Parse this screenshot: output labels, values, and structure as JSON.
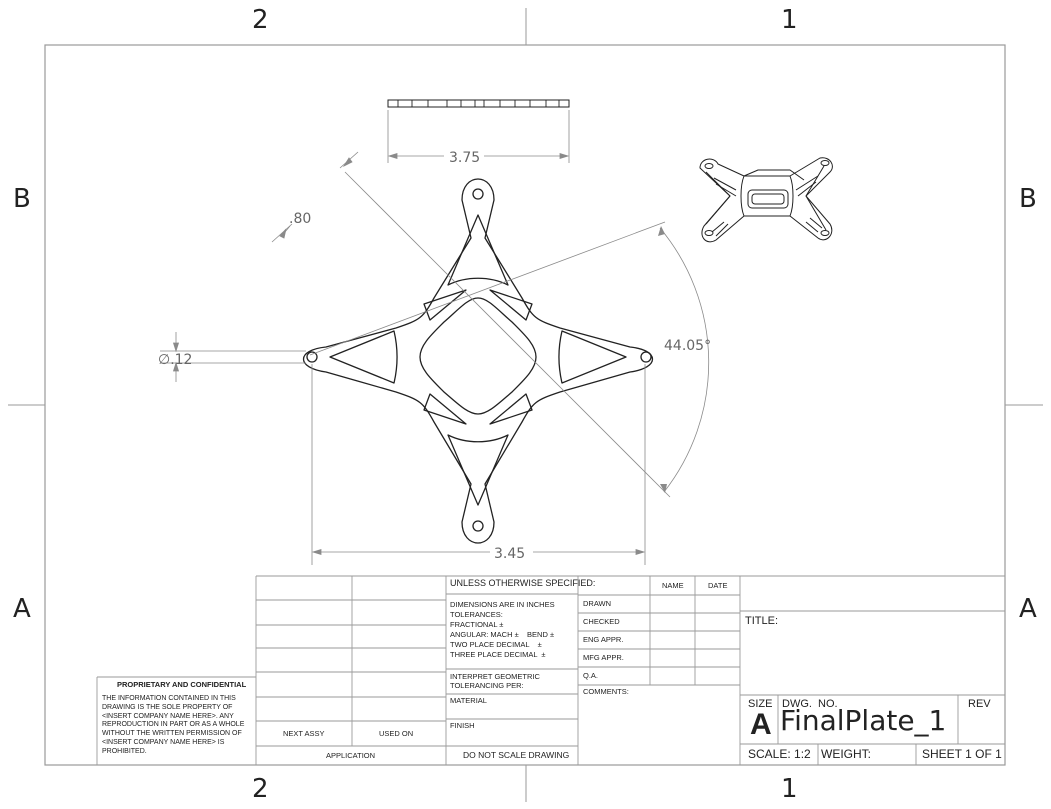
{
  "zones": {
    "top": [
      "2",
      "1"
    ],
    "bottom": [
      "2",
      "1"
    ],
    "left": [
      "B",
      "A"
    ],
    "right": [
      "B",
      "A"
    ]
  },
  "dimensions": {
    "top_width": "3.75",
    "thickness": ".80",
    "hole_dia": "∅.12",
    "angle": "44.05°",
    "bottom_width": "3.45"
  },
  "title_block": {
    "unless_specified": "UNLESS OTHERWISE SPECIFIED:",
    "name_header": "NAME",
    "date_header": "DATE",
    "dims_line1": "DIMENSIONS ARE IN INCHES",
    "dims_line2": "TOLERANCES:",
    "fractional": "FRACTIONAL ±",
    "angular": "ANGULAR: MACH ±    BEND ±",
    "two_place": "TWO PLACE DECIMAL    ±",
    "three_place": "THREE PLACE DECIMAL  ±",
    "interpret_1": "INTERPRET GEOMETRIC",
    "interpret_2": "TOLERANCING PER:",
    "material": "MATERIAL",
    "finish": "FINISH",
    "do_not_scale": "DO NOT SCALE DRAWING",
    "drawn": "DRAWN",
    "checked": "CHECKED",
    "eng_appr": "ENG APPR.",
    "mfg_appr": "MFG APPR.",
    "qa": "Q.A.",
    "comments": "COMMENTS:",
    "title_label": "TITLE:",
    "size_label": "SIZE",
    "size_value": "A",
    "dwg_no_label": "DWG.  NO.",
    "dwg_no_value": "FinalPlate_1",
    "rev_label": "REV",
    "scale": "SCALE: 1:2",
    "weight": "WEIGHT:",
    "sheet": "SHEET 1 OF 1",
    "next_assy": "NEXT ASSY",
    "used_on": "USED ON",
    "application": "APPLICATION",
    "proprietary_title": "PROPRIETARY AND CONFIDENTIAL",
    "proprietary_body": "THE INFORMATION CONTAINED IN THIS DRAWING IS THE SOLE PROPERTY OF <INSERT COMPANY NAME HERE>.  ANY REPRODUCTION IN PART OR AS A WHOLE WITHOUT THE WRITTEN PERMISSION OF <INSERT COMPANY NAME HERE> IS PROHIBITED."
  }
}
